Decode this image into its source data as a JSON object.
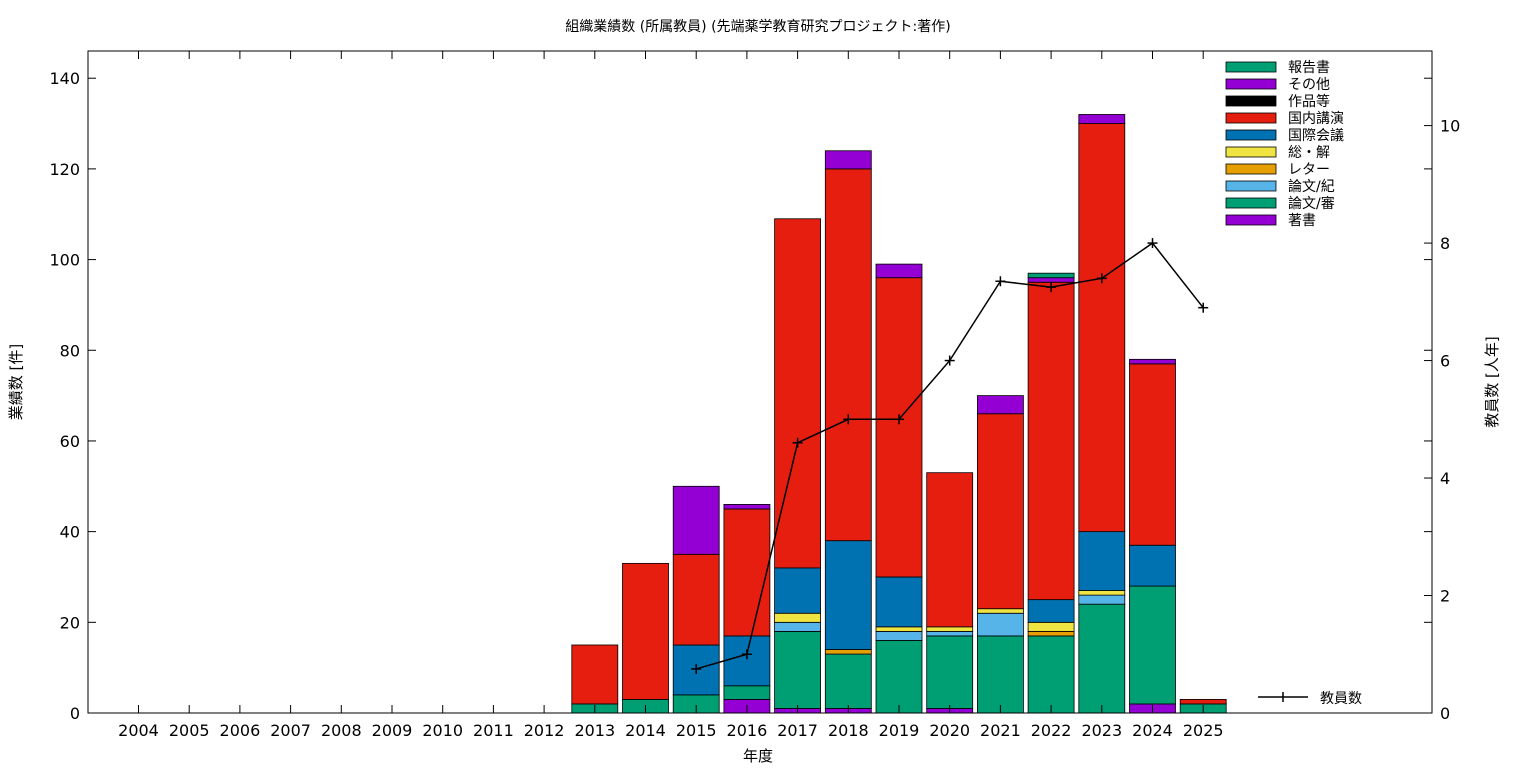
{
  "chart_data": {
    "type": "bar",
    "stacked": true,
    "title": "組織業績数 (所属教員) (先端薬学教育研究プロジェクト:著作)",
    "xlabel": "年度",
    "ylabel": "業績数 [件]",
    "y2label": "教員数 [人年]",
    "ylim": [
      0,
      146
    ],
    "y2lim": [
      0,
      11.27
    ],
    "yticks": [
      "0",
      "20",
      "40",
      "60",
      "80",
      "100",
      "120",
      "140"
    ],
    "y2ticks": [
      "0",
      "2",
      "4",
      "6",
      "8",
      "10"
    ],
    "categories": [
      "2004",
      "2005",
      "2006",
      "2007",
      "2008",
      "2009",
      "2010",
      "2011",
      "2012",
      "2013",
      "2014",
      "2015",
      "2016",
      "2017",
      "2018",
      "2019",
      "2020",
      "2021",
      "2022",
      "2023",
      "2024",
      "2025"
    ],
    "legend_position": "top-right",
    "series": [
      {
        "name": "著書",
        "color": "#9400d3",
        "values": [
          0,
          0,
          0,
          0,
          0,
          0,
          0,
          0,
          0,
          0,
          0,
          0,
          3,
          1,
          1,
          0,
          1,
          0,
          0,
          0,
          2,
          0
        ]
      },
      {
        "name": "論文/審",
        "color": "#009e73",
        "values": [
          0,
          0,
          0,
          0,
          0,
          0,
          0,
          0,
          0,
          2,
          3,
          4,
          3,
          17,
          12,
          16,
          16,
          17,
          17,
          24,
          26,
          2
        ]
      },
      {
        "name": "論文/紀",
        "color": "#56b4e9",
        "values": [
          0,
          0,
          0,
          0,
          0,
          0,
          0,
          0,
          0,
          0,
          0,
          0,
          0,
          2,
          0,
          2,
          1,
          5,
          0,
          2,
          0,
          0
        ]
      },
      {
        "name": "レター",
        "color": "#e69f00",
        "values": [
          0,
          0,
          0,
          0,
          0,
          0,
          0,
          0,
          0,
          0,
          0,
          0,
          0,
          0,
          1,
          0,
          0,
          0,
          1,
          0,
          0,
          0
        ]
      },
      {
        "name": "総・解",
        "color": "#f0e442",
        "values": [
          0,
          0,
          0,
          0,
          0,
          0,
          0,
          0,
          0,
          0,
          0,
          0,
          0,
          2,
          0,
          1,
          1,
          1,
          2,
          1,
          0,
          0
        ]
      },
      {
        "name": "国際会議",
        "color": "#0072b2",
        "values": [
          0,
          0,
          0,
          0,
          0,
          0,
          0,
          0,
          0,
          0,
          0,
          11,
          11,
          10,
          24,
          11,
          0,
          0,
          5,
          13,
          9,
          0
        ]
      },
      {
        "name": "国内講演",
        "color": "#e51e10",
        "values": [
          0,
          0,
          0,
          0,
          0,
          0,
          0,
          0,
          0,
          13,
          30,
          20,
          28,
          77,
          82,
          66,
          34,
          43,
          70,
          90,
          40,
          1
        ]
      },
      {
        "name": "作品等",
        "color": "#000000",
        "values": [
          0,
          0,
          0,
          0,
          0,
          0,
          0,
          0,
          0,
          0,
          0,
          0,
          0,
          0,
          0,
          0,
          0,
          0,
          0,
          0,
          0,
          0
        ]
      },
      {
        "name": "その他",
        "color": "#9400d3",
        "values": [
          0,
          0,
          0,
          0,
          0,
          0,
          0,
          0,
          0,
          0,
          0,
          15,
          1,
          0,
          4,
          3,
          0,
          4,
          1,
          2,
          1,
          0
        ]
      },
      {
        "name": "報告書",
        "color": "#009e73",
        "values": [
          0,
          0,
          0,
          0,
          0,
          0,
          0,
          0,
          0,
          0,
          0,
          0,
          0,
          0,
          0,
          0,
          0,
          0,
          1,
          0,
          0,
          0
        ]
      }
    ],
    "line_series": {
      "name": "教員数",
      "color": "#000000",
      "axis": "right",
      "x": [
        "2015",
        "2016",
        "2017",
        "2018",
        "2019",
        "2020",
        "2021",
        "2022",
        "2023",
        "2024",
        "2025"
      ],
      "values": [
        0.75,
        1.0,
        4.6,
        5.0,
        5.0,
        6.0,
        7.35,
        7.25,
        7.4,
        8.0,
        6.9
      ]
    }
  }
}
